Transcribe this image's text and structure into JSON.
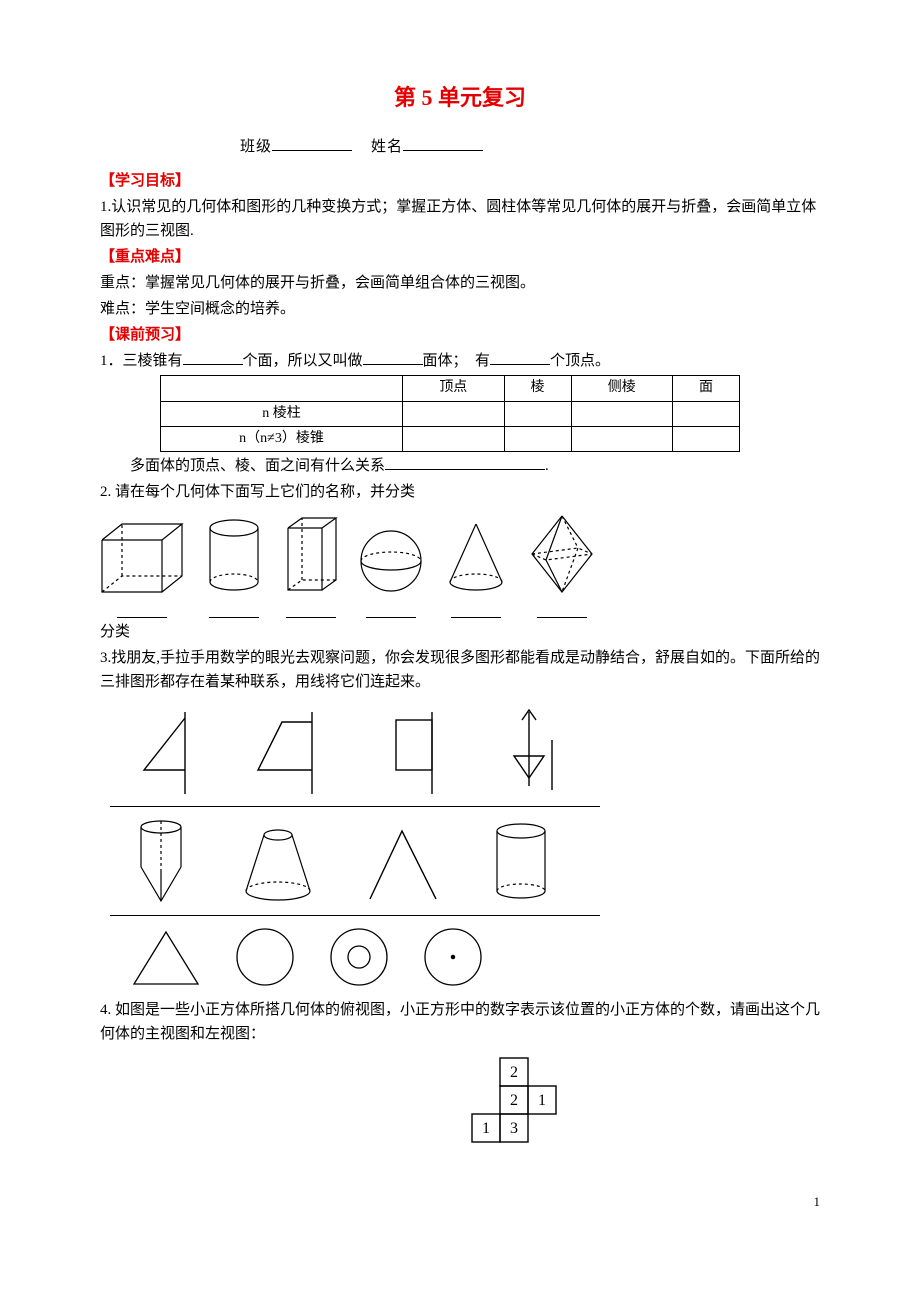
{
  "title": "第 5 单元复习",
  "nameline": {
    "class_label": "班级",
    "name_label": "姓名"
  },
  "sections": {
    "goals_head": "【学习目标】",
    "goals_body": "1.认识常见的几何体和图形的几种变换方式；掌握正方体、圆柱体等常见几何体的展开与折叠，会画简单立体图形的三视图.",
    "keydiff_head": "【重点难点】",
    "keydiff_key": "重点：掌握常见几何体的展开与折叠，会画简单组合体的三视图。",
    "keydiff_diff": "难点：学生空间概念的培养。",
    "prestudy_head": "【课前预习】"
  },
  "q1": {
    "prefix": "1．三棱锥有",
    "mid1": "个面，所以又叫做",
    "mid2": "面体；　有",
    "suffix": "个顶点。",
    "table": {
      "headers": [
        "",
        "顶点",
        "棱",
        "侧棱",
        "面"
      ],
      "rows": [
        [
          "n 棱柱",
          "",
          "",
          "",
          ""
        ],
        [
          "n（n≠3）棱锥",
          "",
          "",
          "",
          ""
        ]
      ]
    },
    "tail_prefix": "多面体的顶点、棱、面之间有什么关系",
    "tail_suffix": "."
  },
  "q2": {
    "text": "2. 请在每个几何体下面写上它们的名称，并分类",
    "classify": "分类"
  },
  "q3": {
    "text": "3.找朋友,手拉手用数学的眼光去观察问题，你会发现很多图形都能看成是动静结合，舒展自如的。下面所给的三排图形都存在着某种联系，用线将它们连起来。"
  },
  "q4": {
    "text": "4. 如图是一些小正方体所搭几何体的俯视图，小正方形中的数字表示该位置的小正方体的个数，请画出这个几何体的主视图和左视图：",
    "grid": [
      [
        null,
        "2",
        null
      ],
      [
        null,
        "2",
        "1"
      ],
      [
        "1",
        "3",
        null
      ]
    ],
    "cell_size": 28
  },
  "page_number": "1",
  "colors": {
    "accent": "#e40000",
    "text": "#000000",
    "bg": "#ffffff"
  }
}
